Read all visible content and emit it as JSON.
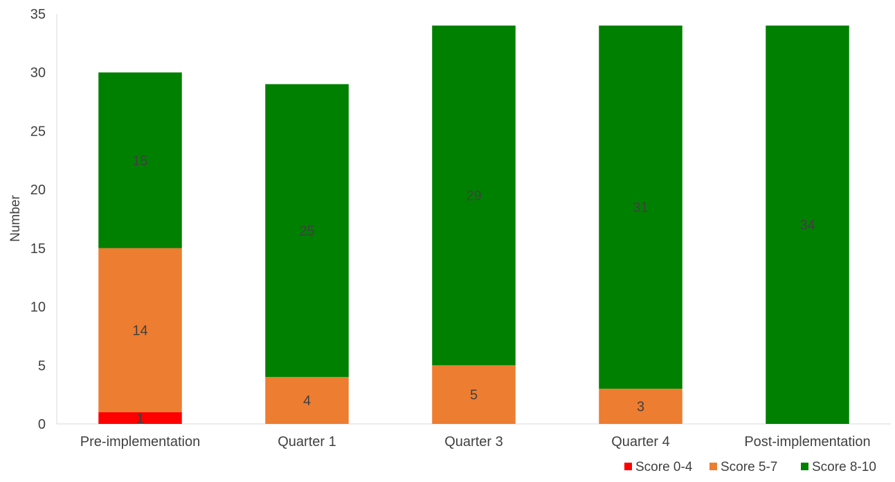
{
  "chart_data": {
    "type": "bar",
    "stacked": true,
    "title": "",
    "xlabel": "",
    "ylabel": "Number",
    "ylim": [
      0,
      35
    ],
    "yticks": [
      0,
      5,
      10,
      15,
      20,
      25,
      30,
      35
    ],
    "grid": false,
    "legend_position": "bottom-right",
    "categories": [
      "Pre-implementation",
      "Quarter 1",
      "Quarter 3",
      "Quarter 4",
      "Post-implementation"
    ],
    "series": [
      {
        "name": "Score 0-4",
        "color": "#ff0000",
        "values": [
          1,
          0,
          0,
          0,
          0
        ],
        "labels": [
          "1",
          "",
          "",
          "",
          ""
        ]
      },
      {
        "name": "Score 5-7",
        "color": "#ed7d31",
        "values": [
          14,
          4,
          5,
          3,
          0
        ],
        "labels": [
          "14",
          "4",
          "5",
          "3",
          ""
        ]
      },
      {
        "name": "Score 8-10",
        "color": "#008000",
        "values": [
          15,
          25,
          29,
          31,
          34
        ],
        "labels": [
          "15",
          "25",
          "29",
          "31",
          "34"
        ]
      }
    ]
  }
}
